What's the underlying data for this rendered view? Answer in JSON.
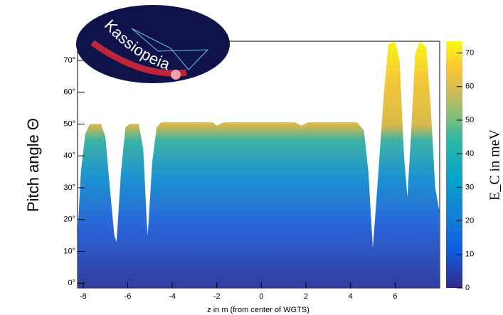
{
  "chart_data": {
    "type": "area",
    "logo_text": "Kassiopeia",
    "x_label": "z in m (from center of WGTS)",
    "y_label": "Pitch angle Θ",
    "colorbar_label": "E_C  in meV",
    "xlim": [
      -8.25,
      8.0
    ],
    "xticks": [
      -8,
      -6,
      -4,
      -2,
      0,
      2,
      4,
      6
    ],
    "ylim": [
      -1.5,
      76
    ],
    "yticks": [
      {
        "value": 0,
        "label": "0°"
      },
      {
        "value": 10,
        "label": "10°"
      },
      {
        "value": 20,
        "label": "20°"
      },
      {
        "value": 30,
        "label": "30°"
      },
      {
        "value": 40,
        "label": "40°"
      },
      {
        "value": 50,
        "label": "50°"
      },
      {
        "value": 60,
        "label": "60°"
      },
      {
        "value": 70,
        "label": "70°"
      }
    ],
    "zlim": [
      0,
      73.5
    ],
    "zticks": [
      0,
      10,
      20,
      30,
      40,
      50,
      60,
      70
    ],
    "series": [
      {
        "x": [
          -8.25,
          -8.1,
          -7.9,
          -7.7,
          -7.2,
          -7.0,
          -6.8,
          -6.6,
          -6.5,
          -6.3,
          -6.1,
          -5.9,
          -5.5,
          -5.3,
          -5.15,
          -5.1,
          -4.9,
          -4.7,
          -4.5,
          -2.2,
          -2.0,
          -1.7,
          1.5,
          1.8,
          2.1,
          4.3,
          4.6,
          4.8,
          5.0,
          5.2,
          5.5,
          5.7,
          6.0,
          6.2,
          6.4,
          6.55,
          6.7,
          6.9,
          7.1,
          7.4,
          7.6,
          7.8,
          8.0
        ],
        "values": [
          15,
          35,
          47,
          50,
          50,
          46,
          30,
          15,
          13,
          35,
          49,
          50,
          50,
          42,
          20,
          15,
          38,
          49,
          50.5,
          50.5,
          49.5,
          50.5,
          50.5,
          49.5,
          50.5,
          50.5,
          48,
          35,
          11,
          30,
          60,
          75,
          76,
          70,
          40,
          27,
          45,
          72,
          76,
          74,
          55,
          30,
          22
        ]
      }
    ]
  }
}
